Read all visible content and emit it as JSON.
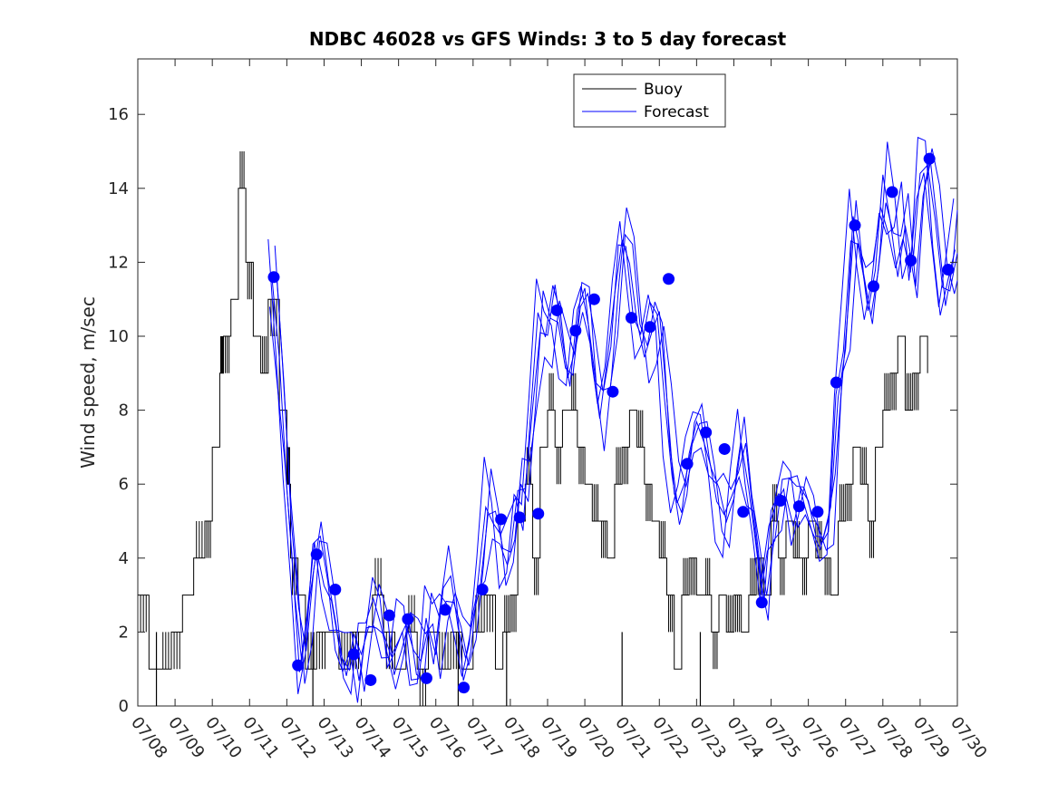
{
  "chart_data": {
    "type": "line",
    "title": "NDBC 46028 vs GFS Winds: 3 to 5 day forecast",
    "xlabel": "",
    "ylabel": "Wind speed, m/sec",
    "x_tick_labels": [
      "07/08",
      "07/09",
      "07/10",
      "07/11",
      "07/12",
      "07/13",
      "07/14",
      "07/15",
      "07/16",
      "07/17",
      "07/18",
      "07/19",
      "07/20",
      "07/21",
      "07/22",
      "07/23",
      "07/24",
      "07/25",
      "07/26",
      "07/27",
      "07/28",
      "07/29",
      "07/30"
    ],
    "xlim_days": [
      8,
      30
    ],
    "ylim": [
      0,
      17.5
    ],
    "y_ticks": [
      0,
      2,
      4,
      6,
      8,
      10,
      12,
      14,
      16
    ],
    "legend": {
      "position": "top-center",
      "entries": [
        "Buoy",
        "Forecast"
      ]
    },
    "colors": {
      "buoy": "#000000",
      "forecast": "#0000ff",
      "markers": "#0000ff"
    },
    "series": [
      {
        "name": "Buoy",
        "x": [
          8.0,
          8.3,
          8.6,
          8.9,
          9.2,
          9.5,
          9.8,
          10.0,
          10.2,
          10.3,
          10.5,
          10.7,
          10.9,
          11.1,
          11.3,
          11.5,
          11.8,
          12.0,
          12.1,
          12.3,
          12.5,
          12.8,
          13.1,
          13.4,
          13.7,
          14.0,
          14.3,
          14.6,
          14.9,
          15.2,
          15.5,
          15.8,
          16.1,
          16.4,
          16.7,
          17.0,
          17.3,
          17.6,
          17.8,
          18.0,
          18.2,
          18.4,
          18.6,
          18.8,
          19.0,
          19.2,
          19.4,
          19.6,
          19.8,
          20.0,
          20.2,
          20.4,
          20.6,
          20.8,
          21.0,
          21.2,
          21.4,
          21.6,
          21.8,
          22.0,
          22.2,
          22.4,
          22.6,
          22.8,
          23.0,
          23.2,
          23.4,
          23.6,
          23.8,
          24.0,
          24.2,
          24.4,
          24.6,
          24.8,
          25.0,
          25.2,
          25.4,
          25.6,
          25.8,
          26.0,
          26.2,
          26.4,
          26.6,
          26.8,
          27.0,
          27.2,
          27.4,
          27.6,
          27.8,
          28.0,
          28.2,
          28.4,
          28.6,
          28.8,
          29.0,
          29.2
        ],
        "y": [
          3,
          1,
          1,
          2,
          3,
          4,
          5,
          7,
          9,
          10,
          11,
          14,
          12,
          10,
          9,
          11,
          8,
          6,
          4,
          3,
          1,
          2,
          2,
          1,
          2,
          2,
          3,
          2,
          1,
          2,
          1,
          2,
          1,
          2,
          1,
          2,
          3,
          1,
          2,
          3,
          5,
          6,
          4,
          7,
          8,
          7,
          8,
          8,
          7,
          6,
          5,
          5,
          4,
          6,
          7,
          8,
          7,
          6,
          5,
          4,
          3,
          1,
          3,
          4,
          3,
          3,
          2,
          3,
          2,
          3,
          2,
          3,
          4,
          3,
          5,
          4,
          5,
          4,
          4,
          5,
          4,
          4,
          3,
          5,
          6,
          7,
          6,
          5,
          7,
          8,
          9,
          10,
          8,
          9,
          10,
          9
        ],
        "gap_drops_to_zero_near_days": [
          8.5,
          12.7,
          16.6,
          17.9,
          21.0,
          23.1
        ]
      },
      {
        "name": "Forecast",
        "style": "multiple overlapping forecast traces",
        "x": [
          11.6,
          11.8,
          12.0,
          12.2,
          12.4,
          12.6,
          12.8,
          13.0,
          13.2,
          13.4,
          13.6,
          13.8,
          14.0,
          14.2,
          14.4,
          14.6,
          14.8,
          15.0,
          15.2,
          15.4,
          15.6,
          15.8,
          16.0,
          16.2,
          16.4,
          16.6,
          16.8,
          17.0,
          17.2,
          17.4,
          17.6,
          17.8,
          18.0,
          18.2,
          18.4,
          18.6,
          18.8,
          19.0,
          19.2,
          19.4,
          19.6,
          19.8,
          20.0,
          20.2,
          20.4,
          20.6,
          20.8,
          21.0,
          21.2,
          21.4,
          21.6,
          21.8,
          22.0,
          22.2,
          22.4,
          22.6,
          22.8,
          23.0,
          23.2,
          23.4,
          23.6,
          23.8,
          24.0,
          24.2,
          24.4,
          24.6,
          24.8,
          25.0,
          25.2,
          25.4,
          25.6,
          25.8,
          26.0,
          26.2,
          26.4,
          26.6,
          26.8,
          27.0,
          27.2,
          27.4,
          27.6,
          27.8,
          28.0,
          28.2,
          28.4,
          28.6,
          28.8,
          29.0,
          29.2,
          29.4,
          29.6,
          29.8,
          30.0
        ],
        "y": [
          11.6,
          9,
          6,
          3.5,
          1,
          2.5,
          4.5,
          3.5,
          2.5,
          1.5,
          1.2,
          2,
          1,
          2.2,
          2.5,
          1.8,
          1,
          2,
          2.5,
          1.2,
          1,
          2.5,
          1.5,
          2.8,
          3.5,
          2.5,
          1.2,
          2,
          3.5,
          5.5,
          5,
          4,
          4.5,
          6,
          5.5,
          8,
          10.5,
          10,
          11,
          10,
          9,
          10.5,
          11,
          9.5,
          8,
          9,
          11,
          13,
          12,
          10,
          9.5,
          10.5,
          10.5,
          8,
          6,
          5.5,
          6.5,
          7.5,
          7.5,
          6.5,
          5.5,
          5,
          6,
          7,
          5.5,
          4.5,
          3,
          5,
          5.5,
          6,
          5,
          5.5,
          5.5,
          5,
          4.5,
          5,
          8.5,
          10,
          13,
          12,
          11,
          12,
          14,
          13,
          12,
          13,
          11.5,
          14.5,
          15,
          13,
          11,
          11.5,
          12.5
        ]
      }
    ],
    "markers": {
      "x": [
        11.65,
        12.3,
        12.8,
        13.3,
        13.8,
        14.25,
        14.75,
        15.25,
        15.75,
        16.25,
        16.75,
        17.25,
        17.75,
        18.25,
        18.75,
        19.25,
        19.75,
        20.25,
        20.75,
        21.25,
        21.75,
        22.25,
        22.75,
        23.25,
        23.75,
        24.25,
        24.75,
        25.25,
        25.75,
        26.25,
        26.75,
        27.25,
        27.75,
        28.25,
        28.75,
        29.25,
        29.75
      ],
      "y": [
        11.6,
        1.1,
        4.1,
        3.15,
        1.4,
        0.7,
        2.45,
        2.35,
        0.75,
        2.6,
        0.5,
        3.15,
        5.05,
        5.1,
        5.2,
        10.7,
        10.15,
        11.0,
        8.5,
        10.5,
        10.25,
        11.55,
        6.55,
        7.4,
        6.95,
        5.25,
        2.8,
        5.55,
        5.4,
        5.25,
        8.75,
        13.0,
        11.35,
        13.9,
        12.05,
        14.8,
        11.8
      ]
    }
  }
}
